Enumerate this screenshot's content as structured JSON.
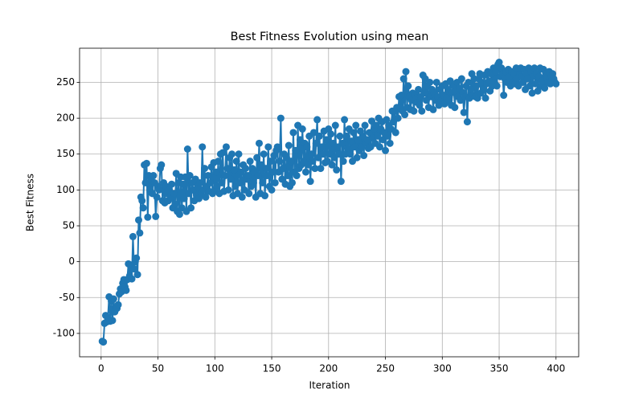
{
  "chart_data": {
    "type": "line",
    "title": "Best Fitness Evolution using mean",
    "xlabel": "Iteration",
    "ylabel": "Best Fitness",
    "x": [
      1,
      2,
      3,
      4,
      5,
      6,
      7,
      8,
      9,
      10,
      11,
      12,
      13,
      14,
      15,
      16,
      17,
      18,
      19,
      20,
      21,
      22,
      23,
      24,
      25,
      26,
      27,
      28,
      29,
      30,
      31,
      32,
      33,
      34,
      35,
      36,
      37,
      38,
      39,
      40,
      41,
      42,
      43,
      44,
      45,
      46,
      47,
      48,
      49,
      50,
      51,
      52,
      53,
      54,
      55,
      56,
      57,
      58,
      59,
      60,
      61,
      62,
      63,
      64,
      65,
      66,
      67,
      68,
      69,
      70,
      71,
      72,
      73,
      74,
      75,
      76,
      77,
      78,
      79,
      80,
      81,
      82,
      83,
      84,
      85,
      86,
      87,
      88,
      89,
      90,
      91,
      92,
      93,
      94,
      95,
      96,
      97,
      98,
      99,
      100,
      101,
      102,
      103,
      104,
      105,
      106,
      107,
      108,
      109,
      110,
      111,
      112,
      113,
      114,
      115,
      116,
      117,
      118,
      119,
      120,
      121,
      122,
      123,
      124,
      125,
      126,
      127,
      128,
      129,
      130,
      131,
      132,
      133,
      134,
      135,
      136,
      137,
      138,
      139,
      140,
      141,
      142,
      143,
      144,
      145,
      146,
      147,
      148,
      149,
      150,
      151,
      152,
      153,
      154,
      155,
      156,
      157,
      158,
      159,
      160,
      161,
      162,
      163,
      164,
      165,
      166,
      167,
      168,
      169,
      170,
      171,
      172,
      173,
      174,
      175,
      176,
      177,
      178,
      179,
      180,
      181,
      182,
      183,
      184,
      185,
      186,
      187,
      188,
      189,
      190,
      191,
      192,
      193,
      194,
      195,
      196,
      197,
      198,
      199,
      200,
      201,
      202,
      203,
      204,
      205,
      206,
      207,
      208,
      209,
      210,
      211,
      212,
      213,
      214,
      215,
      216,
      217,
      218,
      219,
      220,
      221,
      222,
      223,
      224,
      225,
      226,
      227,
      228,
      229,
      230,
      231,
      232,
      233,
      234,
      235,
      236,
      237,
      238,
      239,
      240,
      241,
      242,
      243,
      244,
      245,
      246,
      247,
      248,
      249,
      250,
      251,
      252,
      253,
      254,
      255,
      256,
      257,
      258,
      259,
      260,
      261,
      262,
      263,
      264,
      265,
      266,
      267,
      268,
      269,
      270,
      271,
      272,
      273,
      274,
      275,
      276,
      277,
      278,
      279,
      280,
      281,
      282,
      283,
      284,
      285,
      286,
      287,
      288,
      289,
      290,
      291,
      292,
      293,
      294,
      295,
      296,
      297,
      298,
      299,
      300,
      301,
      302,
      303,
      304,
      305,
      306,
      307,
      308,
      309,
      310,
      311,
      312,
      313,
      314,
      315,
      316,
      317,
      318,
      319,
      320,
      321,
      322,
      323,
      324,
      325,
      326,
      327,
      328,
      329,
      330,
      331,
      332,
      333,
      334,
      335,
      336,
      337,
      338,
      339,
      340,
      341,
      342,
      343,
      344,
      345,
      346,
      347,
      348,
      349,
      350,
      351,
      352,
      353,
      354,
      355,
      356,
      357,
      358,
      359,
      360,
      361,
      362,
      363,
      364,
      365,
      366,
      367,
      368,
      369,
      370,
      371,
      372,
      373,
      374,
      375,
      376,
      377,
      378,
      379,
      380,
      381,
      382,
      383,
      384,
      385,
      386,
      387,
      388,
      389,
      390,
      391,
      392,
      393,
      394,
      395,
      396,
      397,
      398,
      399,
      400
    ],
    "series": [
      {
        "color": "#1f77b4",
        "values": [
          -111,
          -112,
          -86,
          -75,
          -84,
          -78,
          -49,
          -83,
          -55,
          -82,
          -52,
          -70,
          -64,
          -65,
          -60,
          -45,
          -38,
          -42,
          -30,
          -25,
          -35,
          -40,
          -25,
          -3,
          -20,
          -5,
          -24,
          35,
          -10,
          0,
          5,
          -18,
          58,
          40,
          90,
          85,
          75,
          135,
          110,
          137,
          62,
          120,
          100,
          115,
          95,
          120,
          110,
          63,
          90,
          105,
          100,
          130,
          135,
          85,
          110,
          82,
          105,
          95,
          85,
          100,
          90,
          108,
          75,
          95,
          80,
          123,
          70,
          110,
          66,
          118,
          75,
          108,
          88,
          118,
          70,
          157,
          95,
          120,
          75,
          110,
          100,
          85,
          115,
          92,
          105,
          88,
          110,
          95,
          160,
          100,
          130,
          90,
          105,
          120,
          98,
          110,
          132,
          95,
          138,
          100,
          125,
          105,
          140,
          95,
          150,
          110,
          152,
          98,
          120,
          160,
          130,
          100,
          145,
          115,
          150,
          92,
          128,
          105,
          140,
          95,
          150,
          110,
          125,
          90,
          135,
          100,
          130,
          115,
          120,
          95,
          140,
          105,
          130,
          110,
          125,
          90,
          145,
          120,
          165,
          95,
          135,
          110,
          150,
          92,
          130,
          120,
          160,
          105,
          140,
          100,
          125,
          148,
          110,
          155,
          160,
          125,
          140,
          200,
          115,
          130,
          150,
          108,
          145,
          120,
          162,
          105,
          140,
          110,
          180,
          125,
          155,
          120,
          190,
          130,
          170,
          135,
          185,
          140,
          165,
          125,
          160,
          135,
          175,
          112,
          150,
          140,
          180,
          130,
          165,
          198,
          145,
          175,
          130,
          160,
          150,
          182,
          138,
          170,
          140,
          185,
          150,
          178,
          135,
          165,
          145,
          190,
          128,
          160,
          150,
          175,
          112,
          165,
          140,
          198,
          150,
          175,
          158,
          185,
          150,
          168,
          140,
          180,
          160,
          190,
          145,
          170,
          155,
          182,
          160,
          175,
          148,
          190,
          165,
          170,
          158,
          180,
          160,
          196,
          172,
          185,
          165,
          190,
          175,
          200,
          160,
          185,
          195,
          170,
          180,
          155,
          198,
          175,
          190,
          165,
          185,
          210,
          195,
          210,
          180,
          215,
          200,
          230,
          215,
          232,
          210,
          255,
          205,
          265,
          215,
          245,
          230,
          212,
          225,
          235,
          210,
          232,
          228,
          222,
          240,
          218,
          230,
          210,
          260,
          235,
          255,
          225,
          245,
          215,
          250,
          230,
          240,
          212,
          235,
          225,
          250,
          230,
          218,
          240,
          225,
          245,
          232,
          220,
          248,
          228,
          240,
          225,
          252,
          218,
          236,
          245,
          215,
          238,
          250,
          230,
          242,
          225,
          255,
          236,
          208,
          230,
          245,
          195,
          250,
          228,
          240,
          262,
          232,
          255,
          230,
          245,
          228,
          255,
          262,
          235,
          250,
          240,
          260,
          228,
          248,
          265,
          252,
          238,
          262,
          245,
          270,
          250,
          265,
          245,
          275,
          278,
          258,
          270,
          262,
          232,
          255,
          265,
          250,
          268,
          258,
          245,
          265,
          250,
          262,
          248,
          270,
          256,
          245,
          262,
          270,
          258,
          250,
          268,
          240,
          262,
          255,
          270,
          245,
          265,
          235,
          258,
          270,
          248,
          262,
          238,
          258,
          270,
          245,
          252,
          268,
          242,
          262,
          255,
          250,
          265,
          248,
          258,
          262,
          255,
          250,
          248
        ]
      }
    ],
    "xlim": [
      -18.95,
      419.95
    ],
    "ylim": [
      -132.6,
      297.6
    ],
    "xticks": [
      0,
      50,
      100,
      150,
      200,
      250,
      300,
      350,
      400
    ],
    "yticks": [
      -100,
      -50,
      0,
      50,
      100,
      150,
      200,
      250
    ],
    "grid": true
  }
}
